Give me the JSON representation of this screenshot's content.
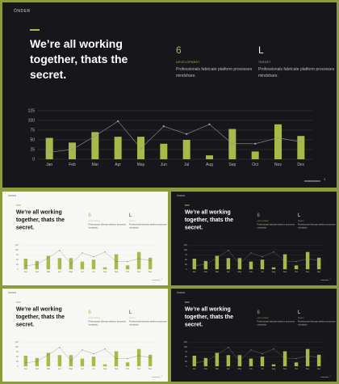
{
  "slide": {
    "logo": "ÖNDER",
    "title": "We’re all working together, thats the secret.",
    "page_number": "1",
    "stats": [
      {
        "value": "6",
        "label": "DEVELOPMENT",
        "description": "Professionals fabricate platform processes mindshare."
      },
      {
        "value": "L",
        "label": "TARGET",
        "description": "Professionals fabricate platform processes mindshare."
      }
    ]
  },
  "colors": {
    "accent": "#a8b94a",
    "dark_background": "#17171b",
    "light_background": "#f7f7f4",
    "frame": "#8c9b3d"
  },
  "chart_data": {
    "type": "bar",
    "categories": [
      "Jan",
      "Feb",
      "Mar",
      "Apr",
      "May",
      "Jun",
      "Jul",
      "Aug",
      "Sep",
      "Oct",
      "Nov",
      "Dec"
    ],
    "series": [
      {
        "type": "bar",
        "values": [
          55,
          43,
          70,
          58,
          58,
          40,
          50,
          10,
          78,
          20,
          90,
          60
        ]
      },
      {
        "type": "line",
        "values": [
          18,
          25,
          60,
          98,
          28,
          85,
          65,
          90,
          40,
          40,
          55,
          45
        ]
      }
    ],
    "ylim": [
      0,
      125
    ],
    "yticks": [
      "0",
      "25",
      "50",
      "75",
      "100",
      "125"
    ],
    "grid": true
  }
}
